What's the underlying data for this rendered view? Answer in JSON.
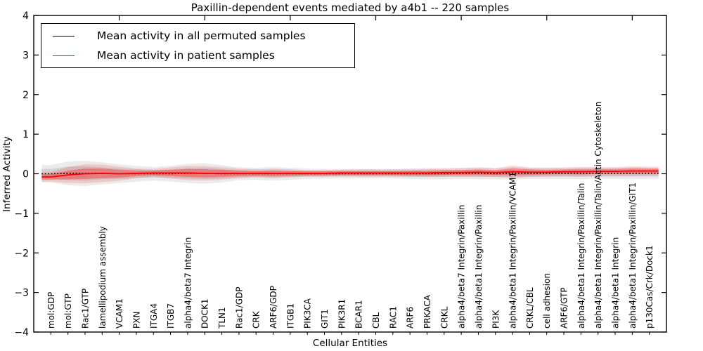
{
  "chart_data": {
    "type": "line",
    "title": "Paxillin-dependent events mediated by a4b1 -- 220 samples",
    "xlabel": "Cellular Entities",
    "ylabel": "Inferred Activity",
    "ylim": [
      -4,
      4
    ],
    "yticks": [
      4,
      3,
      2,
      1,
      0,
      -1,
      -2,
      -3,
      -4
    ],
    "xtick_positions": [
      5,
      10,
      15,
      20,
      25,
      30,
      35
    ],
    "grid": false,
    "legend_position": "upper left",
    "categories": [
      "mol:GDP",
      "mol:GTP",
      "Rac1/GTP",
      "lamellipodium assembly",
      "VCAM1",
      "PXN",
      "ITGA4",
      "ITGB7",
      "alpha4/beta7 Integrin",
      "DOCK1",
      "TLN1",
      "Rac1/GDP",
      "CRK",
      "ARF6/GDP",
      "ITGB1",
      "PIK3CA",
      "GIT1",
      "PIK3R1",
      "BCAR1",
      "CBL",
      "RAC1",
      "ARF6",
      "PRKACA",
      "CRKL",
      "alpha4/beta7 Integrin/Paxillin",
      "alpha4/beta1 Integrin/Paxillin",
      "PI3K",
      "alpha4/beta1 Integrin/Paxillin/VCAM1",
      "CRKL/CBL",
      "cell adhesion",
      "ARF6/GTP",
      "alpha4/beta1 Integrin/Paxillin/Talin",
      "alpha4/beta1 Integrin/Paxillin/Talin/Actin Cytoskeleton",
      "alpha4/beta1 Integrin",
      "alpha4/beta1 Integrin/Paxillin/GIT1",
      "p130Cas/Crk/Dock1"
    ],
    "series": [
      {
        "name": "Mean activity in all permuted samples",
        "color": "#000000",
        "line_style": "dotted",
        "line_width": 1.6,
        "values": [
          0.0,
          0.01,
          0.01,
          0.01,
          0.0,
          0.0,
          0.0,
          0.0,
          0.01,
          0.01,
          0.0,
          0.0,
          0.0,
          0.0,
          0.0,
          0.0,
          0.0,
          0.0,
          0.0,
          0.0,
          0.0,
          0.0,
          0.0,
          0.0,
          0.01,
          0.01,
          0.0,
          0.01,
          0.01,
          0.01,
          0.01,
          0.01,
          0.01,
          0.01,
          0.01,
          0.01
        ],
        "band": {
          "color": "#808080",
          "outer_opacity": 0.16,
          "inner_opacity": 0.22,
          "outer": [
            0.22,
            0.3,
            0.32,
            0.28,
            0.24,
            0.2,
            0.17,
            0.2,
            0.24,
            0.26,
            0.22,
            0.16,
            0.15,
            0.17,
            0.15,
            0.13,
            0.12,
            0.12,
            0.12,
            0.12,
            0.12,
            0.13,
            0.14,
            0.14,
            0.14,
            0.15,
            0.14,
            0.16,
            0.14,
            0.14,
            0.14,
            0.15,
            0.14,
            0.14,
            0.15,
            0.14
          ],
          "inner": [
            0.12,
            0.17,
            0.18,
            0.15,
            0.13,
            0.11,
            0.09,
            0.11,
            0.13,
            0.14,
            0.12,
            0.09,
            0.08,
            0.09,
            0.08,
            0.07,
            0.07,
            0.07,
            0.07,
            0.07,
            0.07,
            0.07,
            0.08,
            0.08,
            0.08,
            0.08,
            0.08,
            0.09,
            0.08,
            0.08,
            0.08,
            0.08,
            0.08,
            0.08,
            0.08,
            0.08
          ]
        }
      },
      {
        "name": "Mean activity in patient samples",
        "color": "#ff0000",
        "line_style": "solid",
        "line_width": 1.8,
        "values": [
          -0.08,
          -0.03,
          0.0,
          0.01,
          0.0,
          0.01,
          0.02,
          0.02,
          0.02,
          0.01,
          0.01,
          0.01,
          0.01,
          0.01,
          0.01,
          0.01,
          0.01,
          0.02,
          0.02,
          0.02,
          0.02,
          0.02,
          0.02,
          0.03,
          0.03,
          0.04,
          0.03,
          0.05,
          0.04,
          0.04,
          0.05,
          0.05,
          0.06,
          0.06,
          0.07,
          0.07
        ],
        "band": {
          "color": "#ff0000",
          "outer_opacity": 0.14,
          "inner_opacity": 0.3,
          "outer": [
            0.12,
            0.2,
            0.24,
            0.22,
            0.18,
            0.12,
            0.1,
            0.14,
            0.18,
            0.18,
            0.16,
            0.12,
            0.1,
            0.12,
            0.1,
            0.08,
            0.08,
            0.08,
            0.09,
            0.09,
            0.09,
            0.1,
            0.1,
            0.1,
            0.11,
            0.12,
            0.11,
            0.16,
            0.12,
            0.11,
            0.11,
            0.12,
            0.11,
            0.11,
            0.12,
            0.11
          ],
          "inner": [
            0.07,
            0.11,
            0.13,
            0.12,
            0.1,
            0.07,
            0.06,
            0.08,
            0.1,
            0.1,
            0.09,
            0.07,
            0.06,
            0.07,
            0.06,
            0.05,
            0.05,
            0.05,
            0.05,
            0.05,
            0.05,
            0.06,
            0.06,
            0.06,
            0.06,
            0.07,
            0.06,
            0.09,
            0.07,
            0.06,
            0.06,
            0.07,
            0.06,
            0.06,
            0.07,
            0.06
          ]
        }
      }
    ]
  }
}
